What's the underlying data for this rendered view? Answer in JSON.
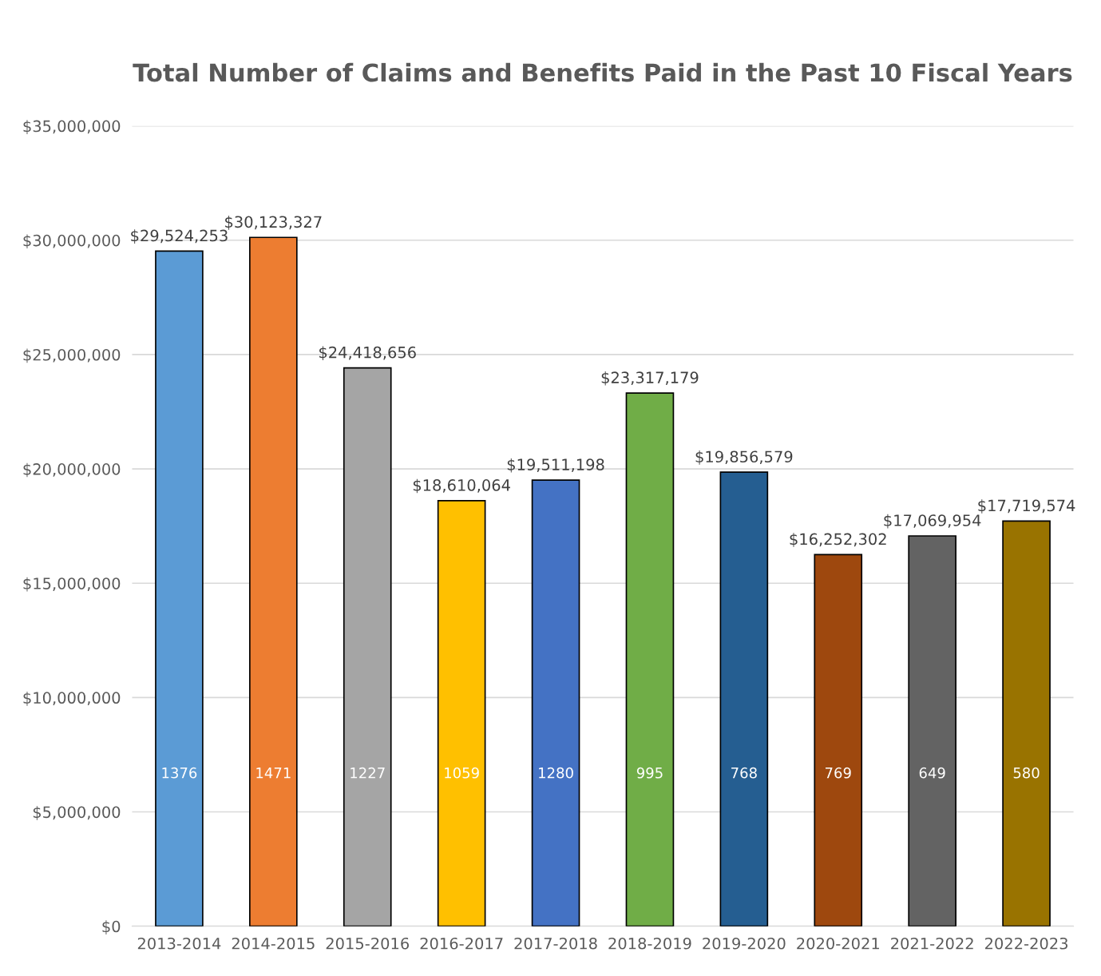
{
  "chart_data": {
    "type": "bar",
    "title": "Total Number of Claims and Benefits Paid in the Past 10 Fiscal Years",
    "categories": [
      "2013-2014",
      "2014-2015",
      "2015-2016",
      "2016-2017",
      "2017-2018",
      "2018-2019",
      "2019-2020",
      "2020-2021",
      "2021-2022",
      "2022-2023"
    ],
    "values": [
      29524253,
      30123327,
      24418656,
      18610064,
      19511198,
      23317179,
      19856579,
      16252302,
      17069954,
      17719574
    ],
    "colors": [
      "#5b9bd5",
      "#ed7d31",
      "#a5a5a5",
      "#ffc000",
      "#4472c4",
      "#70ad47",
      "#255e91",
      "#9e480e",
      "#636363",
      "#997300"
    ],
    "value_labels": [
      "$29,524,253",
      "$30,123,327",
      "$24,418,656",
      "$18,610,064",
      "$19,511,198",
      "$23,317,179",
      "$19,856,579",
      "$16,252,302",
      "$17,069,954",
      "$17,719,574"
    ],
    "ylim": [
      0,
      35000000
    ],
    "yticks": [
      {
        "value": 0,
        "label": "$0"
      },
      {
        "value": 5000000,
        "label": "$5,000,000"
      },
      {
        "value": 10000000,
        "label": "$10,000,000"
      },
      {
        "value": 15000000,
        "label": "$15,000,000"
      },
      {
        "value": 20000000,
        "label": "$20,000,000"
      },
      {
        "value": 25000000,
        "label": "$25,000,000"
      },
      {
        "value": 30000000,
        "label": "$30,000,000"
      },
      {
        "value": 35000000,
        "label": "$35,000,000"
      }
    ],
    "grid": "y",
    "annotations": [
      "1376",
      "1471",
      "1227",
      "1059",
      "1280",
      "995",
      "768",
      "769",
      "649",
      "580"
    ]
  }
}
